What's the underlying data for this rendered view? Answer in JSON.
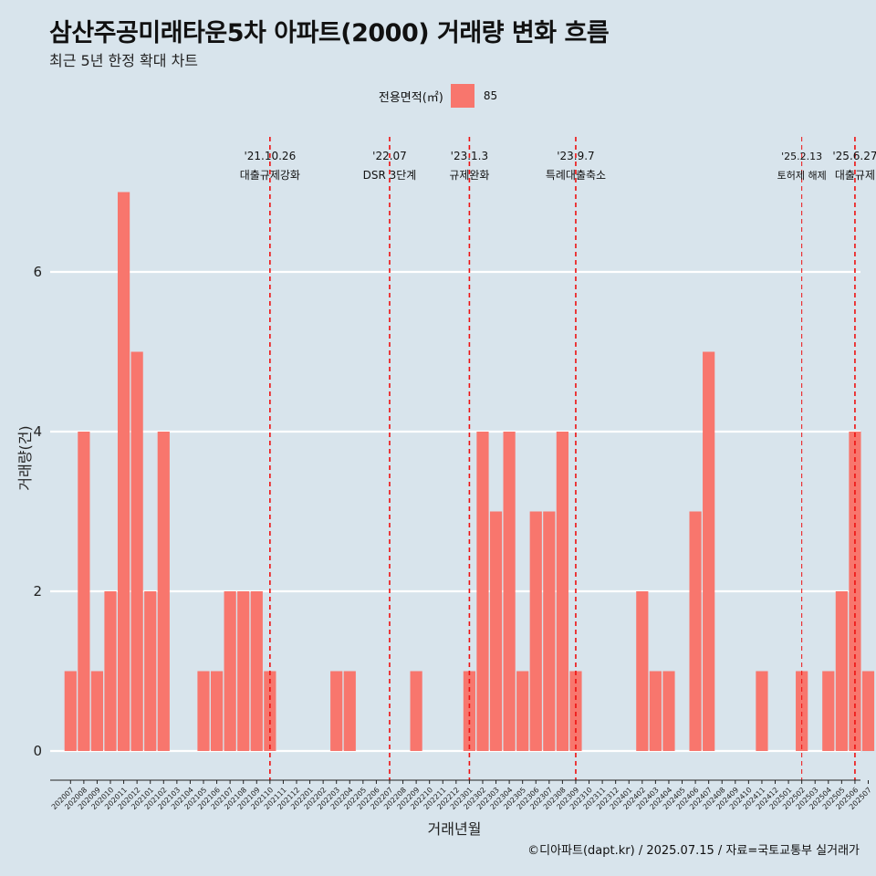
{
  "title": "삼산주공미래타운5차 아파트(2000) 거래량 변화 흐름",
  "subtitle": "최근 5년 한정 확대 차트",
  "legend": {
    "title": "전용면적(㎡)",
    "label": "85",
    "color": "#f8766d"
  },
  "caption": "©디아파트(dapt.kr) / 2025.07.15 / 자료=국토교통부 실거래가",
  "chart_data": {
    "type": "bar",
    "xlabel": "거래년월",
    "ylabel": "거래량(건)",
    "ylim": [
      0,
      7
    ],
    "y_ticks": [
      0,
      2,
      4,
      6
    ],
    "grid": "horizontal major lines only",
    "legend_position": "top",
    "categories": [
      "202007",
      "202008",
      "202009",
      "202010",
      "202011",
      "202012",
      "202101",
      "202102",
      "202103",
      "202104",
      "202105",
      "202106",
      "202107",
      "202108",
      "202109",
      "202110",
      "202111",
      "202112",
      "202201",
      "202202",
      "202203",
      "202204",
      "202205",
      "202206",
      "202207",
      "202208",
      "202209",
      "202210",
      "202211",
      "202212",
      "202301",
      "202302",
      "202303",
      "202304",
      "202305",
      "202306",
      "202307",
      "202308",
      "202309",
      "202310",
      "202311",
      "202312",
      "202401",
      "202402",
      "202403",
      "202404",
      "202405",
      "202406",
      "202407",
      "202408",
      "202409",
      "202410",
      "202411",
      "202412",
      "202501",
      "202502",
      "202503",
      "202504",
      "202505",
      "202506",
      "202507"
    ],
    "series": [
      {
        "name": "85",
        "color": "#f8766d",
        "values": [
          1,
          4,
          1,
          2,
          7,
          5,
          2,
          4,
          0,
          0,
          1,
          1,
          2,
          2,
          2,
          1,
          0,
          0,
          0,
          0,
          1,
          1,
          0,
          0,
          0,
          0,
          1,
          0,
          0,
          0,
          1,
          4,
          3,
          4,
          1,
          3,
          3,
          4,
          1,
          0,
          0,
          0,
          0,
          2,
          1,
          1,
          0,
          3,
          5,
          0,
          0,
          0,
          1,
          0,
          0,
          1,
          0,
          1,
          2,
          4,
          1
        ]
      }
    ],
    "events": [
      {
        "date": "'21.10.26",
        "label": "대출규제강화",
        "at": "202110"
      },
      {
        "date": "'22.07",
        "label": "DSR 3단계",
        "at": "202207"
      },
      {
        "date": "'23.1.3",
        "label": "규제완화",
        "at": "202301"
      },
      {
        "date": "'23.9.7",
        "label": "특례대출축소",
        "at": "202309"
      },
      {
        "date": "'25.2.13",
        "label": "토허제 해제",
        "at": "202502"
      },
      {
        "date": "'25.6.27",
        "label": "대출규제",
        "at": "202506"
      }
    ]
  }
}
